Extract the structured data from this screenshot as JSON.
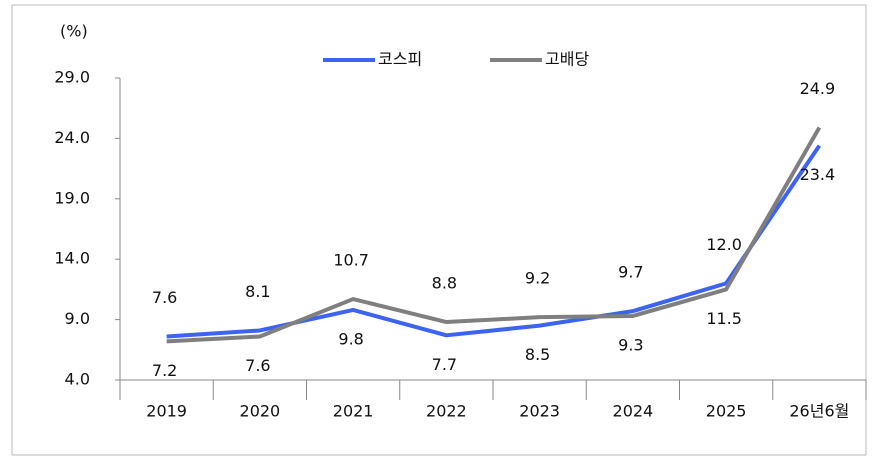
{
  "chart_data": {
    "type": "line",
    "unit_label": "(%)",
    "categories": [
      "2019",
      "2020",
      "2021",
      "2022",
      "2023",
      "2024",
      "2025",
      "26년6월"
    ],
    "series": [
      {
        "name": "코스피",
        "color": "#3d63f2",
        "values": [
          7.6,
          8.1,
          9.8,
          7.7,
          8.5,
          9.7,
          12.0,
          23.4
        ],
        "value_labels": [
          "7.6",
          "8.1",
          "9.8",
          "7.7",
          "8.5",
          "9.7",
          "12.0",
          "23.4"
        ]
      },
      {
        "name": "고배당",
        "color": "#7f7f7f",
        "values": [
          7.2,
          7.6,
          10.7,
          8.8,
          9.2,
          9.3,
          11.5,
          24.9
        ],
        "value_labels": [
          "7.2",
          "7.6",
          "10.7",
          "8.8",
          "9.2",
          "9.3",
          "11.5",
          "24.9"
        ]
      }
    ],
    "ylim": [
      4,
      29
    ],
    "yticks": [
      {
        "value": 4,
        "label": "4.0"
      },
      {
        "value": 9,
        "label": "9.0"
      },
      {
        "value": 14,
        "label": "14.0"
      },
      {
        "value": 19,
        "label": "19.0"
      },
      {
        "value": 24,
        "label": "24.0"
      },
      {
        "value": 29,
        "label": "29.0"
      }
    ],
    "legend": "top"
  }
}
